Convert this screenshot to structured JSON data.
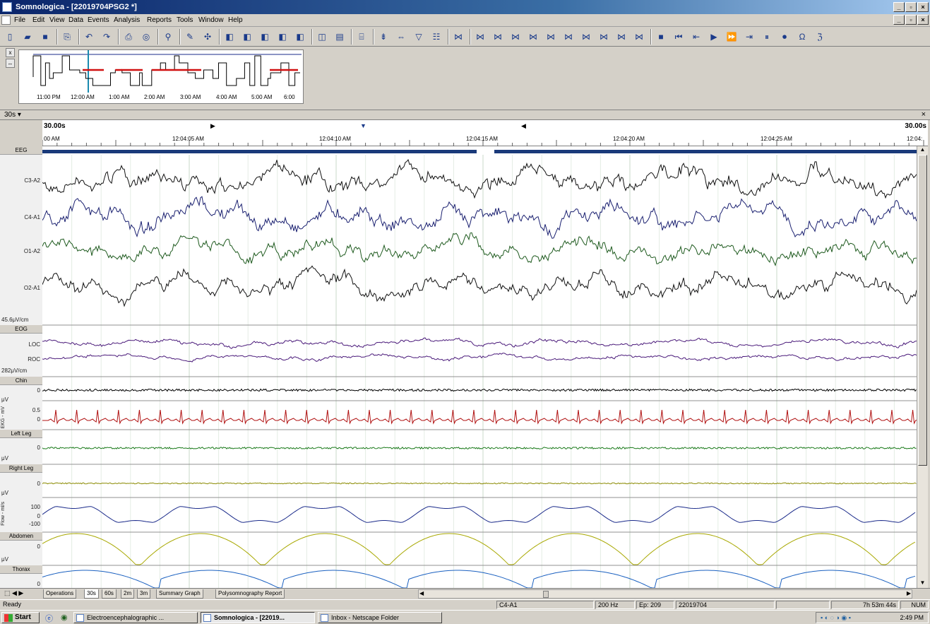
{
  "window": {
    "title": "Somnologica - [22019704PSG2 *]",
    "minimize": "_",
    "maximize": "▫",
    "close": "×"
  },
  "menu": [
    "File",
    "Edit",
    "View",
    "Data",
    "Events",
    "Analysis",
    "Reports",
    "Tools",
    "Window",
    "Help"
  ],
  "toolbar": {
    "icons": [
      "new-icon",
      "open-icon",
      "save-icon",
      "copy-icon",
      "undo-icon",
      "redo-icon",
      "print-icon",
      "preview-icon",
      "zoom-icon",
      "pen-icon",
      "marker-icon",
      "layout-1-icon",
      "layout-2-icon",
      "layout-3-icon",
      "layout-4-icon",
      "layout-5-icon",
      "panel-1-icon",
      "panel-2-icon",
      "montage-icon",
      "down-icon",
      "split-icon",
      "filter-icon",
      "list-icon",
      "event-1-icon",
      "event-2-icon",
      "event-3-icon",
      "event-4-icon",
      "event-5-icon",
      "event-6-icon",
      "event-7-icon",
      "event-8-icon",
      "event-9-icon",
      "event-10-icon",
      "event-11-icon",
      "stop-icon",
      "step-back-icon",
      "prev-icon",
      "play-icon",
      "fast-forward-icon",
      "next-icon",
      "pause-icon",
      "record-icon",
      "omega-icon",
      "sleep-icon"
    ]
  },
  "hypnogram": {
    "time_labels": [
      "11:00 PM",
      "12:00 AM",
      "1:00 AM",
      "2:00 AM",
      "3:00 AM",
      "4:00 AM",
      "5:00 AM",
      "6:00"
    ],
    "close": "x",
    "expand": "↔"
  },
  "view": {
    "duration_selector": "30s ▾",
    "close": "×"
  },
  "time_axis": {
    "epoch_left": "30.00s",
    "epoch_right": "30.00s",
    "labels": [
      "00 AM",
      "12:04:05 AM",
      "12:04:10 AM",
      "12:04:15 AM",
      "12:04:20 AM",
      "12:04:25 AM",
      "12:04:"
    ]
  },
  "channels": {
    "eeg": {
      "header": "EEG",
      "labels": [
        "C3-A2",
        "C4-A1",
        "O1-A2",
        "O2-A1"
      ],
      "scale": "45.6μV/cm",
      "colors": [
        "#111111",
        "#1a2070",
        "#1e5a1e",
        "#111111"
      ]
    },
    "eog": {
      "header": "EOG",
      "labels": [
        "LOC",
        "ROC"
      ],
      "scale": "282μV/cm",
      "color": "#4a1a7a"
    },
    "chin": {
      "header": "Chin",
      "zero": "0",
      "unit": "μV"
    },
    "ekg": {
      "header": "EKG - mV",
      "ticks": [
        "0.5",
        "0"
      ],
      "color": "#b01010"
    },
    "left_leg": {
      "header": "Left Leg",
      "zero": "0",
      "unit": "μV",
      "color": "#1a7a1a"
    },
    "right_leg": {
      "header": "Right Leg",
      "zero": "0",
      "unit": "μV",
      "color": "#8a8a00"
    },
    "flow": {
      "header": "Flow - ml/s",
      "ticks": [
        "100",
        "0",
        "-100"
      ],
      "color": "#1a2a8a"
    },
    "abdomen": {
      "header": "Abdomen",
      "zero": "0",
      "unit": "μV",
      "color": "#a8a800"
    },
    "thorax": {
      "header": "Thorax",
      "zero": "0",
      "color": "#1a60c0"
    }
  },
  "tabs": [
    "Operations",
    "30s",
    "60s",
    "2m",
    "3m",
    "Summary Graph",
    "Polysomnography Report"
  ],
  "status": {
    "ready": "Ready",
    "channel": "C4-A1",
    "rate": "200 Hz",
    "epoch": "Ep: 209",
    "file": "22019704",
    "elapsed": "7h 53m 44s",
    "num": "NUM"
  },
  "taskbar": {
    "start": "Start",
    "tasks": [
      "Electroencephalographic ...",
      "Somnologica - [22019...",
      "Inbox - Netscape Folder"
    ],
    "clock": "2:49 PM"
  }
}
